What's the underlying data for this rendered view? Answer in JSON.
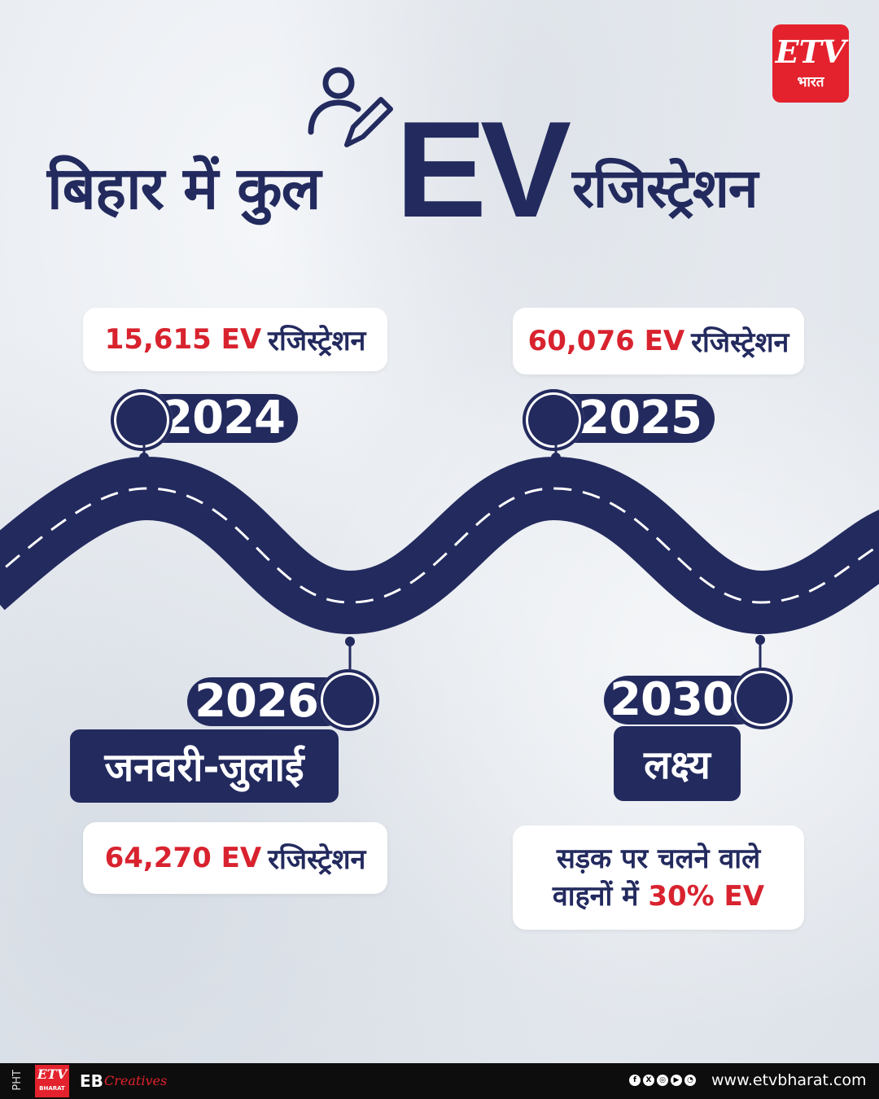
{
  "logo": {
    "mark": "ETV",
    "sub": "भारत"
  },
  "title": {
    "prefix": "बिहार में कुल",
    "highlight": "EV",
    "suffix": "रजिस्ट्रेशन"
  },
  "milestones": [
    {
      "year": "2024",
      "value": "15,615 EV",
      "unit": "रजिस्ट्रेशन"
    },
    {
      "year": "2025",
      "value": "60,076 EV",
      "unit": "रजिस्ट्रेशन"
    },
    {
      "year": "2026",
      "period": "जनवरी-जुलाई",
      "value": "64,270 EV",
      "unit": "रजिस्ट्रेशन"
    },
    {
      "year": "2030",
      "period": "लक्ष्य",
      "line1": "सड़क पर चलने वाले",
      "line2_prefix": "वाहनों में",
      "line2_value": "30% EV"
    }
  ],
  "footer": {
    "pht": "PHT",
    "logo": "ETV",
    "logo_sub": "BHARAT",
    "eb": "EB",
    "creatives": "Creatives",
    "socials": [
      "f",
      "X",
      "◎",
      "▶",
      "◔"
    ],
    "site": "www.etvbharat.com"
  },
  "colors": {
    "navy": "#232a5e",
    "red": "#d8232f",
    "brand": "#e3222d"
  }
}
